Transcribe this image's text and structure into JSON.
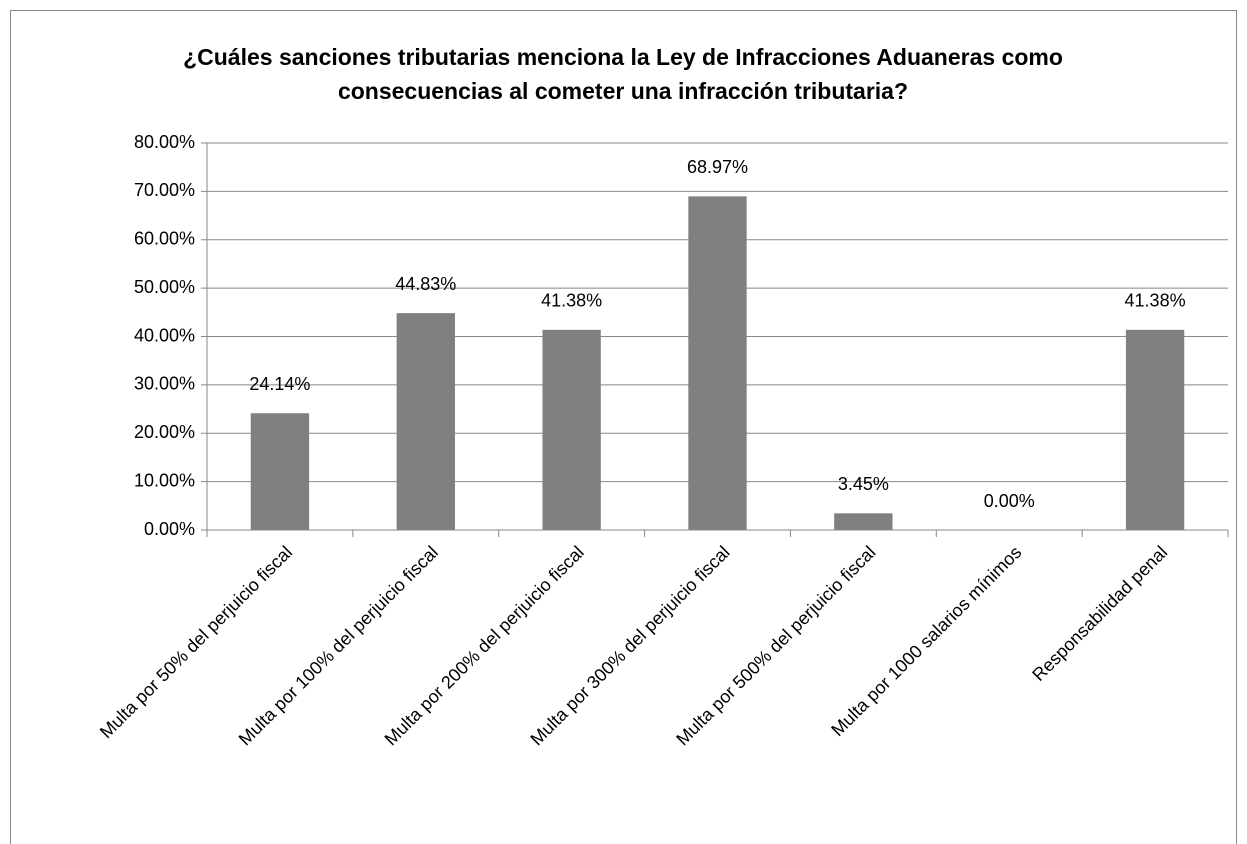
{
  "chart_data": {
    "type": "bar",
    "title": "¿Cuáles sanciones tributarias menciona la Ley de Infracciones Aduaneras como consecuencias al cometer una infracción tributaria?",
    "categories": [
      "Multa por 50% del perjuicio fiscal",
      "Multa por 100% del perjuicio fiscal",
      "Multa por 200% del perjuicio fiscal",
      "Multa por 300% del perjuicio fiscal",
      "Multa por 500% del perjuicio fiscal",
      "Multa por 1000 salarios mínimos",
      "Responsabilidad penal"
    ],
    "values": [
      24.14,
      44.83,
      41.38,
      68.97,
      3.45,
      0,
      41.38
    ],
    "value_labels": [
      "24.14%",
      "44.83%",
      "41.38%",
      "68.97%",
      "3.45%",
      "0.00%",
      "41.38%"
    ],
    "color": "#808080",
    "ylim": [
      0,
      80
    ],
    "yticks": [
      {
        "value": 0,
        "label": "0.00%"
      },
      {
        "value": 10,
        "label": "10.00%"
      },
      {
        "value": 20,
        "label": "20.00%"
      },
      {
        "value": 30,
        "label": "30.00%"
      },
      {
        "value": 40,
        "label": "40.00%"
      },
      {
        "value": 50,
        "label": "50.00%"
      },
      {
        "value": 60,
        "label": "60.00%"
      },
      {
        "value": 70,
        "label": "70.00%"
      },
      {
        "value": 80,
        "label": "80.00%"
      }
    ],
    "grid": true
  }
}
